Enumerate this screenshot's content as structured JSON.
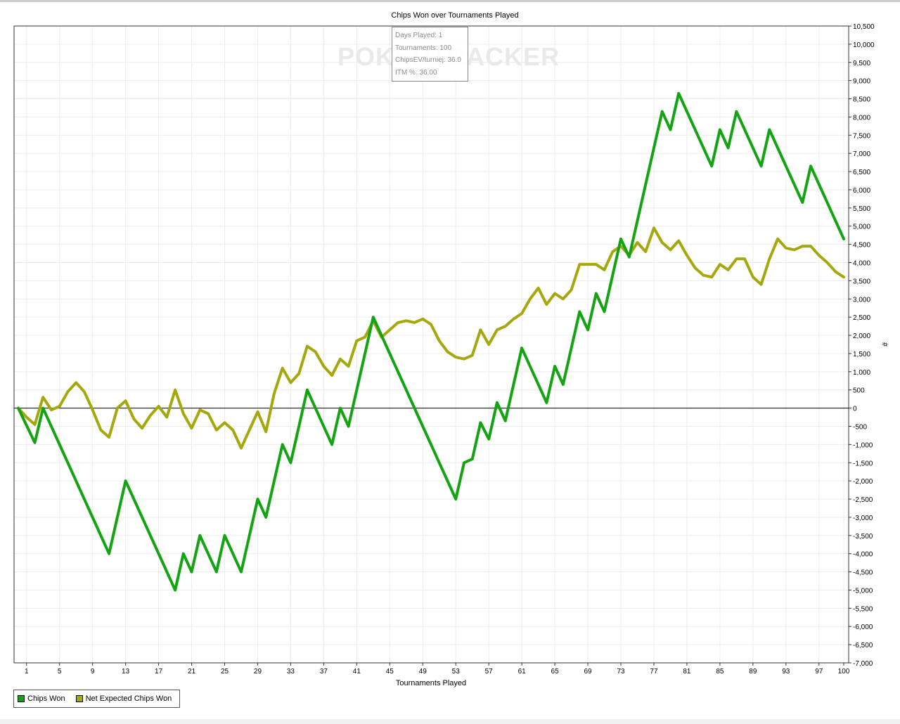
{
  "chart_data": {
    "type": "line",
    "title": "Chips Won over Tournaments Played",
    "xlabel": "Tournaments Played",
    "ylabel": "#",
    "xlim": [
      0,
      100
    ],
    "ylim": [
      -7000,
      10500
    ],
    "x_ticks": [
      1,
      5,
      9,
      13,
      17,
      21,
      25,
      29,
      33,
      37,
      41,
      45,
      49,
      53,
      57,
      61,
      65,
      69,
      73,
      77,
      81,
      85,
      89,
      93,
      97,
      100
    ],
    "y_ticks": [
      -7000,
      -6500,
      -6000,
      -5500,
      -5000,
      -4500,
      -4000,
      -3500,
      -3000,
      -2500,
      -2000,
      -1500,
      -1000,
      -500,
      0,
      500,
      1000,
      1500,
      2000,
      2500,
      3000,
      3500,
      4000,
      4500,
      5000,
      5500,
      6000,
      6500,
      7000,
      7500,
      8000,
      8500,
      9000,
      9500,
      10000,
      10500
    ],
    "y_tick_labels": [
      "-7,000",
      "-6,500",
      "-6,000",
      "-5,500",
      "-5,000",
      "-4,500",
      "-4,000",
      "-3,500",
      "-3,000",
      "-2,500",
      "-2,000",
      "-1,500",
      "-1,000",
      "-500",
      "0",
      "500",
      "1,000",
      "1,500",
      "2,000",
      "2,500",
      "3,000",
      "3,500",
      "4,000",
      "4,500",
      "5,000",
      "5,500",
      "6,000",
      "6,500",
      "7,000",
      "7,500",
      "8,000",
      "8,500",
      "9,000",
      "9,500",
      "10,000",
      "10,500"
    ],
    "grid": true,
    "legend_position": "bottom-left",
    "series": [
      {
        "name": "Chips Won",
        "color": "#13a313",
        "points": [
          [
            0,
            0
          ],
          [
            2,
            -950
          ],
          [
            3,
            0
          ],
          [
            11,
            -4000
          ],
          [
            13,
            -2000
          ],
          [
            19,
            -5000
          ],
          [
            20,
            -4000
          ],
          [
            21,
            -4500
          ],
          [
            22,
            -3500
          ],
          [
            24,
            -4500
          ],
          [
            25,
            -3500
          ],
          [
            27,
            -4500
          ],
          [
            29,
            -2500
          ],
          [
            30,
            -3000
          ],
          [
            32,
            -1000
          ],
          [
            33,
            -1500
          ],
          [
            35,
            500
          ],
          [
            38,
            -1000
          ],
          [
            39,
            0
          ],
          [
            40,
            -500
          ],
          [
            43,
            2500
          ],
          [
            53,
            -2500
          ],
          [
            54,
            -1500
          ],
          [
            55,
            -1400
          ],
          [
            56,
            -400
          ],
          [
            57,
            -850
          ],
          [
            58,
            150
          ],
          [
            59,
            -350
          ],
          [
            61,
            1650
          ],
          [
            64,
            150
          ],
          [
            65,
            1150
          ],
          [
            66,
            650
          ],
          [
            68,
            2650
          ],
          [
            69,
            2150
          ],
          [
            70,
            3150
          ],
          [
            71,
            2650
          ],
          [
            73,
            4650
          ],
          [
            74,
            4150
          ],
          [
            78,
            8150
          ],
          [
            79,
            7650
          ],
          [
            80,
            8650
          ],
          [
            84,
            6650
          ],
          [
            85,
            7650
          ],
          [
            86,
            7150
          ],
          [
            87,
            8150
          ],
          [
            90,
            6650
          ],
          [
            91,
            7650
          ],
          [
            95,
            5650
          ],
          [
            96,
            6650
          ],
          [
            100,
            4650
          ]
        ]
      },
      {
        "name": "Net Expected Chips Won",
        "color": "#a5a80c",
        "points": [
          [
            0,
            0
          ],
          [
            1,
            -250
          ],
          [
            2,
            -450
          ],
          [
            3,
            300
          ],
          [
            4,
            -50
          ],
          [
            5,
            50
          ],
          [
            6,
            450
          ],
          [
            7,
            700
          ],
          [
            8,
            450
          ],
          [
            9,
            -50
          ],
          [
            10,
            -600
          ],
          [
            11,
            -800
          ],
          [
            12,
            0
          ],
          [
            13,
            200
          ],
          [
            14,
            -300
          ],
          [
            15,
            -550
          ],
          [
            16,
            -200
          ],
          [
            17,
            50
          ],
          [
            18,
            -250
          ],
          [
            19,
            500
          ],
          [
            20,
            -150
          ],
          [
            21,
            -550
          ],
          [
            22,
            -50
          ],
          [
            23,
            -150
          ],
          [
            24,
            -600
          ],
          [
            25,
            -400
          ],
          [
            26,
            -600
          ],
          [
            27,
            -1100
          ],
          [
            28,
            -600
          ],
          [
            29,
            -100
          ],
          [
            30,
            -650
          ],
          [
            31,
            400
          ],
          [
            32,
            1100
          ],
          [
            33,
            700
          ],
          [
            34,
            950
          ],
          [
            35,
            1700
          ],
          [
            36,
            1550
          ],
          [
            37,
            1150
          ],
          [
            38,
            900
          ],
          [
            39,
            1350
          ],
          [
            40,
            1150
          ],
          [
            41,
            1850
          ],
          [
            42,
            1950
          ],
          [
            43,
            2400
          ],
          [
            44,
            1950
          ],
          [
            45,
            2150
          ],
          [
            46,
            2350
          ],
          [
            47,
            2400
          ],
          [
            48,
            2350
          ],
          [
            49,
            2450
          ],
          [
            50,
            2300
          ],
          [
            51,
            1850
          ],
          [
            52,
            1550
          ],
          [
            53,
            1400
          ],
          [
            54,
            1350
          ],
          [
            55,
            1450
          ],
          [
            56,
            2150
          ],
          [
            57,
            1750
          ],
          [
            58,
            2150
          ],
          [
            59,
            2250
          ],
          [
            60,
            2450
          ],
          [
            61,
            2600
          ],
          [
            62,
            3000
          ],
          [
            63,
            3300
          ],
          [
            64,
            2850
          ],
          [
            65,
            3150
          ],
          [
            66,
            3000
          ],
          [
            67,
            3250
          ],
          [
            68,
            3950
          ],
          [
            69,
            3950
          ],
          [
            70,
            3950
          ],
          [
            71,
            3800
          ],
          [
            72,
            4300
          ],
          [
            73,
            4450
          ],
          [
            74,
            4200
          ],
          [
            75,
            4550
          ],
          [
            76,
            4300
          ],
          [
            77,
            4950
          ],
          [
            78,
            4550
          ],
          [
            79,
            4350
          ],
          [
            80,
            4600
          ],
          [
            81,
            4200
          ],
          [
            82,
            3850
          ],
          [
            83,
            3650
          ],
          [
            84,
            3600
          ],
          [
            85,
            3950
          ],
          [
            86,
            3800
          ],
          [
            87,
            4100
          ],
          [
            88,
            4100
          ],
          [
            89,
            3600
          ],
          [
            90,
            3400
          ],
          [
            91,
            4100
          ],
          [
            92,
            4650
          ],
          [
            93,
            4400
          ],
          [
            94,
            4350
          ],
          [
            95,
            4450
          ],
          [
            96,
            4450
          ],
          [
            97,
            4200
          ],
          [
            98,
            4000
          ],
          [
            99,
            3750
          ],
          [
            100,
            3600
          ]
        ]
      }
    ]
  },
  "tooltip": {
    "line1": "Days Played: 1",
    "line2": "Tournaments: 100",
    "line3": "ChipsEV/turniej: 36.0",
    "line4": "ITM %: 36.00"
  },
  "watermark": "POKERTRACKER"
}
